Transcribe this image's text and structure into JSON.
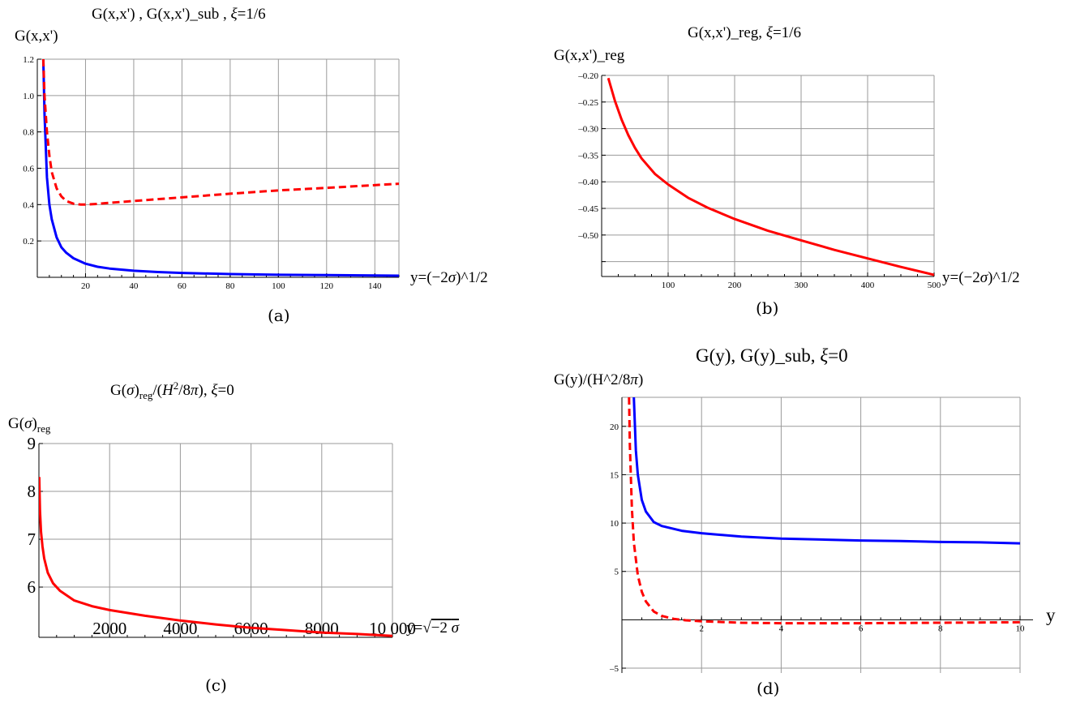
{
  "panels": {
    "a": {
      "title": "G(x,x') ,     G(x,x')_sub ,   ξ=1/6",
      "ylabel": "G(x,x')",
      "xlabel": "y=(−2σ)^1/2",
      "caption": "(a)"
    },
    "b": {
      "title": "G(x,x')_reg,    ξ=1/6",
      "ylabel": "G(x,x')_reg",
      "xlabel": "y=(−2σ)^1/2",
      "caption": "(b)"
    },
    "c": {
      "title": "G(σ)reg/(H2/8π),    ξ=0",
      "ylabel": "G(σ)reg",
      "xlabel": "y=√−2 σ",
      "caption": "(c)"
    },
    "d": {
      "title": "G(y),   G(y)_sub,     ξ=0",
      "ylabel": "G(y)/(H^2/8π)",
      "xlabel": "y",
      "caption": "(d)"
    }
  },
  "chart_data": [
    {
      "type": "line",
      "title": "G(x,x') ,     G(x,x')_sub ,   ξ=1/6",
      "xlabel": "y=(−2σ)^1/2",
      "ylabel": "G(x,x')",
      "xlim": [
        0,
        150
      ],
      "ylim": [
        0,
        1.2
      ],
      "xticks": [
        20,
        40,
        60,
        80,
        100,
        120,
        140
      ],
      "yticks": [
        0.2,
        0.4,
        0.6,
        0.8,
        1.0,
        1.2
      ],
      "xtick_labels": [
        "20",
        "40",
        "60",
        "80",
        "100",
        "120",
        "140"
      ],
      "ytick_labels": [
        "0.2",
        "0.4",
        "0.6",
        "0.8",
        "1.0",
        "1.2"
      ],
      "grid": true,
      "series": [
        {
          "color": "#0000ff",
          "dash": "solid",
          "x": [
            2.5,
            3,
            4,
            5,
            6,
            8,
            10,
            12,
            15,
            20,
            25,
            30,
            40,
            50,
            60,
            80,
            100,
            120,
            150
          ],
          "y": [
            1.2,
            0.9,
            0.55,
            0.4,
            0.32,
            0.22,
            0.165,
            0.135,
            0.105,
            0.075,
            0.058,
            0.048,
            0.036,
            0.029,
            0.024,
            0.018,
            0.014,
            0.012,
            0.009
          ]
        },
        {
          "color": "#ff0000",
          "dash": "dashed",
          "x": [
            2.5,
            3,
            4,
            5,
            6,
            8,
            10,
            12,
            15,
            18,
            20,
            25,
            30,
            40,
            60,
            80,
            100,
            120,
            150
          ],
          "y": [
            1.2,
            1.0,
            0.8,
            0.67,
            0.58,
            0.49,
            0.445,
            0.42,
            0.405,
            0.4,
            0.4,
            0.404,
            0.41,
            0.42,
            0.44,
            0.46,
            0.478,
            0.492,
            0.515
          ]
        }
      ]
    },
    {
      "type": "line",
      "title": "G(x,x')_reg,    ξ=1/6",
      "xlabel": "y=(−2σ)^1/2",
      "ylabel": "G(x,x')_reg",
      "xlim": [
        0,
        500
      ],
      "ylim": [
        -0.6,
        -0.2
      ],
      "xticks": [
        100,
        200,
        300,
        400,
        500
      ],
      "yticks": [
        -0.55,
        -0.5,
        -0.45,
        -0.4,
        -0.35,
        -0.3,
        -0.25,
        -0.2
      ],
      "xtick_labels": [
        "100",
        "200",
        "300",
        "400",
        "500"
      ],
      "ytick_labels": [
        "",
        "–0.50",
        "–0.45",
        "–0.40",
        "–0.35",
        "–0.30",
        "–0.25",
        "–0.20"
      ],
      "grid": true,
      "series": [
        {
          "color": "#ff0000",
          "dash": "solid",
          "x": [
            10,
            20,
            30,
            40,
            50,
            60,
            80,
            100,
            130,
            160,
            200,
            250,
            300,
            350,
            400,
            450,
            500
          ],
          "y": [
            -0.205,
            -0.248,
            -0.283,
            -0.312,
            -0.336,
            -0.356,
            -0.385,
            -0.405,
            -0.43,
            -0.449,
            -0.47,
            -0.492,
            -0.51,
            -0.528,
            -0.544,
            -0.56,
            -0.575
          ]
        }
      ]
    },
    {
      "type": "line",
      "title": "G(σ)reg/(H2/8π),    ξ=0",
      "xlabel": "y=√−2 σ",
      "ylabel": "G(σ)reg",
      "xlim": [
        0,
        10000
      ],
      "ylim": [
        5,
        9
      ],
      "xticks": [
        2000,
        4000,
        6000,
        8000,
        10000
      ],
      "yticks": [
        6,
        7,
        8,
        9
      ],
      "xtick_labels": [
        "2000",
        "4000",
        "6000",
        "8000",
        "10 000"
      ],
      "ytick_labels": [
        "6",
        "7",
        "8",
        "9"
      ],
      "grid": true,
      "series": [
        {
          "color": "#ff0000",
          "dash": "solid",
          "x": [
            10,
            30,
            60,
            100,
            150,
            250,
            400,
            600,
            1000,
            1500,
            2000,
            3000,
            4000,
            5000,
            6000,
            7000,
            8000,
            9000,
            10000
          ],
          "y": [
            8.3,
            7.6,
            7.15,
            6.85,
            6.6,
            6.3,
            6.08,
            5.92,
            5.72,
            5.6,
            5.52,
            5.4,
            5.3,
            5.22,
            5.15,
            5.1,
            5.05,
            5.02,
            4.98
          ]
        }
      ]
    },
    {
      "type": "line",
      "title": "G(y),   G(y)_sub,     ξ=0",
      "xlabel": "y",
      "ylabel": "G(y)/(H^2/8π)",
      "xlim": [
        0,
        10
      ],
      "ylim": [
        -5,
        23
      ],
      "xticks": [
        2,
        4,
        6,
        8,
        10
      ],
      "yticks": [
        -5,
        5,
        10,
        15,
        20
      ],
      "xtick_labels": [
        "2",
        "4",
        "6",
        "8",
        "10"
      ],
      "ytick_labels": [
        "–5",
        "5",
        "10",
        "15",
        "20"
      ],
      "grid": true,
      "series": [
        {
          "color": "#0000ff",
          "dash": "solid",
          "x": [
            0.3,
            0.35,
            0.4,
            0.5,
            0.6,
            0.8,
            1,
            1.5,
            2,
            3,
            4,
            5,
            6,
            7,
            8,
            9,
            10
          ],
          "y": [
            23,
            17.5,
            15,
            12.4,
            11.2,
            10.1,
            9.7,
            9.2,
            8.95,
            8.6,
            8.4,
            8.3,
            8.2,
            8.15,
            8.05,
            8.0,
            7.9
          ]
        },
        {
          "color": "#ff0000",
          "dash": "dashed",
          "x": [
            0.18,
            0.2,
            0.25,
            0.3,
            0.4,
            0.5,
            0.6,
            0.8,
            1,
            1.3,
            1.6,
            2,
            3,
            4,
            6,
            8,
            10
          ],
          "y": [
            23,
            18,
            11.5,
            8,
            4.6,
            2.9,
            1.9,
            0.85,
            0.4,
            0.1,
            -0.05,
            -0.15,
            -0.3,
            -0.35,
            -0.35,
            -0.3,
            -0.25
          ]
        }
      ]
    }
  ]
}
